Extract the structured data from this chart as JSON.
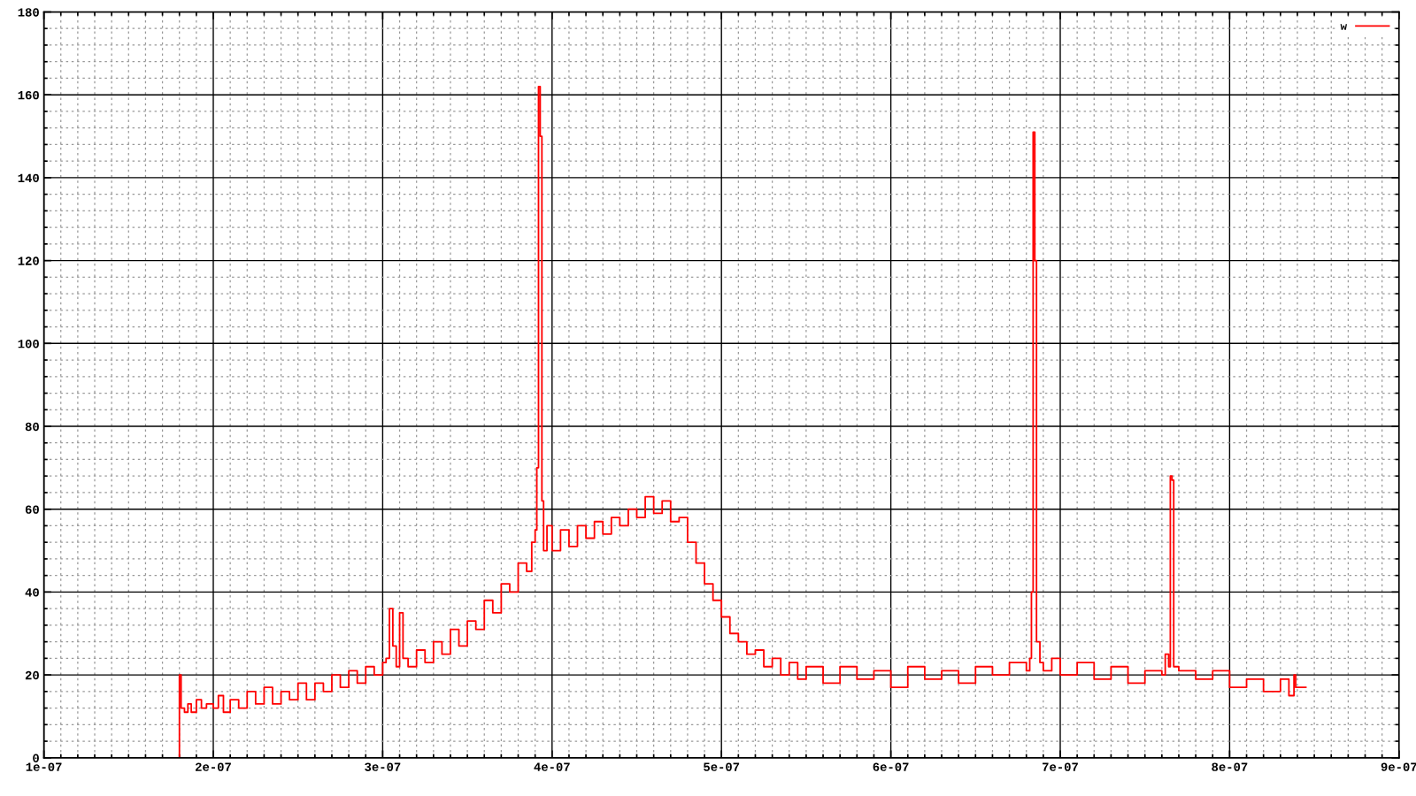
{
  "chart_data": {
    "type": "step",
    "x": [
      1.78e-07,
      1.79e-07,
      1.8e-07,
      1.81e-07,
      1.83e-07,
      1.85e-07,
      1.87e-07,
      1.9e-07,
      1.93e-07,
      1.96e-07,
      2e-07,
      2.03e-07,
      2.06e-07,
      2.1e-07,
      2.15e-07,
      2.2e-07,
      2.25e-07,
      2.3e-07,
      2.35e-07,
      2.4e-07,
      2.45e-07,
      2.5e-07,
      2.55e-07,
      2.6e-07,
      2.65e-07,
      2.7e-07,
      2.75e-07,
      2.8e-07,
      2.85e-07,
      2.9e-07,
      2.95e-07,
      3e-07,
      3.02e-07,
      3.04e-07,
      3.06e-07,
      3.08e-07,
      3.1e-07,
      3.12e-07,
      3.15e-07,
      3.2e-07,
      3.25e-07,
      3.3e-07,
      3.35e-07,
      3.4e-07,
      3.45e-07,
      3.5e-07,
      3.55e-07,
      3.6e-07,
      3.65e-07,
      3.7e-07,
      3.75e-07,
      3.8e-07,
      3.85e-07,
      3.88e-07,
      3.9e-07,
      3.91e-07,
      3.92e-07,
      3.93e-07,
      3.94e-07,
      3.95e-07,
      3.97e-07,
      4e-07,
      4.05e-07,
      4.1e-07,
      4.15e-07,
      4.2e-07,
      4.25e-07,
      4.3e-07,
      4.35e-07,
      4.4e-07,
      4.45e-07,
      4.5e-07,
      4.55e-07,
      4.6e-07,
      4.65e-07,
      4.7e-07,
      4.75e-07,
      4.8e-07,
      4.85e-07,
      4.9e-07,
      4.95e-07,
      5e-07,
      5.05e-07,
      5.1e-07,
      5.15e-07,
      5.2e-07,
      5.25e-07,
      5.3e-07,
      5.35e-07,
      5.4e-07,
      5.45e-07,
      5.5e-07,
      5.6e-07,
      5.7e-07,
      5.8e-07,
      5.9e-07,
      6e-07,
      6.1e-07,
      6.2e-07,
      6.3e-07,
      6.4e-07,
      6.5e-07,
      6.6e-07,
      6.7e-07,
      6.8e-07,
      6.82e-07,
      6.83e-07,
      6.84e-07,
      6.85e-07,
      6.86e-07,
      6.88e-07,
      6.9e-07,
      6.95e-07,
      7e-07,
      7.1e-07,
      7.2e-07,
      7.3e-07,
      7.4e-07,
      7.5e-07,
      7.6e-07,
      7.62e-07,
      7.64e-07,
      7.65e-07,
      7.66e-07,
      7.67e-07,
      7.7e-07,
      7.8e-07,
      7.9e-07,
      8e-07,
      8.1e-07,
      8.2e-07,
      8.3e-07,
      8.35e-07,
      8.38e-07,
      8.39e-07,
      8.45e-07
    ],
    "series": [
      {
        "name": "w",
        "color": "#ff0000",
        "values": [
          0,
          0,
          20,
          12,
          11,
          13,
          11,
          14,
          12,
          13,
          12,
          15,
          11,
          14,
          12,
          16,
          13,
          17,
          13,
          16,
          14,
          18,
          14,
          18,
          16,
          20,
          17,
          21,
          18,
          22,
          20,
          23,
          24,
          36,
          27,
          22,
          35,
          24,
          22,
          26,
          23,
          28,
          25,
          31,
          27,
          33,
          31,
          38,
          35,
          42,
          40,
          47,
          45,
          52,
          55,
          70,
          162,
          150,
          62,
          50,
          56,
          50,
          55,
          51,
          56,
          53,
          57,
          54,
          58,
          56,
          60,
          58,
          63,
          59,
          62,
          57,
          58,
          52,
          47,
          42,
          38,
          34,
          30,
          28,
          25,
          26,
          22,
          24,
          20,
          23,
          19,
          22,
          18,
          22,
          19,
          21,
          17,
          22,
          19,
          21,
          18,
          22,
          20,
          23,
          21,
          24,
          40,
          151,
          120,
          28,
          23,
          21,
          24,
          20,
          23,
          19,
          22,
          18,
          21,
          20,
          25,
          22,
          68,
          67,
          22,
          21,
          19,
          21,
          17,
          19,
          16,
          19,
          15,
          20,
          17,
          17
        ]
      }
    ],
    "xlim": [
      1e-07,
      9e-07
    ],
    "ylim": [
      0,
      180
    ],
    "xticks": [
      1e-07,
      {
        "value": 1.1e-07,
        "label": null
      },
      {
        "value": 1.2e-07,
        "label": null
      },
      {
        "value": 1.3e-07,
        "label": null
      },
      {
        "value": 1.4e-07,
        "label": null
      },
      {
        "value": 1.5e-07,
        "label": null
      },
      {
        "value": 1.6e-07,
        "label": null
      },
      {
        "value": 1.7e-07,
        "label": null
      },
      {
        "value": 1.8e-07,
        "label": null
      },
      {
        "value": 1.9e-07,
        "label": null
      },
      2e-07,
      {
        "value": 2.1e-07,
        "label": null
      },
      {
        "value": 2.2e-07,
        "label": null
      },
      {
        "value": 2.3e-07,
        "label": null
      },
      {
        "value": 2.4e-07,
        "label": null
      },
      {
        "value": 2.5e-07,
        "label": null
      },
      {
        "value": 2.6e-07,
        "label": null
      },
      {
        "value": 2.7e-07,
        "label": null
      },
      {
        "value": 2.8e-07,
        "label": null
      },
      {
        "value": 2.9e-07,
        "label": null
      },
      3e-07,
      {
        "value": 3.1e-07,
        "label": null
      },
      {
        "value": 3.2e-07,
        "label": null
      },
      {
        "value": 3.3e-07,
        "label": null
      },
      {
        "value": 3.4e-07,
        "label": null
      },
      {
        "value": 3.5e-07,
        "label": null
      },
      {
        "value": 3.6e-07,
        "label": null
      },
      {
        "value": 3.7e-07,
        "label": null
      },
      {
        "value": 3.8e-07,
        "label": null
      },
      {
        "value": 3.9e-07,
        "label": null
      },
      4e-07,
      {
        "value": 4.1e-07,
        "label": null
      },
      {
        "value": 4.2e-07,
        "label": null
      },
      {
        "value": 4.3e-07,
        "label": null
      },
      {
        "value": 4.4e-07,
        "label": null
      },
      {
        "value": 4.5e-07,
        "label": null
      },
      {
        "value": 4.6e-07,
        "label": null
      },
      {
        "value": 4.7e-07,
        "label": null
      },
      {
        "value": 4.8e-07,
        "label": null
      },
      {
        "value": 4.9e-07,
        "label": null
      },
      5e-07,
      {
        "value": 5.1e-07,
        "label": null
      },
      {
        "value": 5.2e-07,
        "label": null
      },
      {
        "value": 5.3e-07,
        "label": null
      },
      {
        "value": 5.4e-07,
        "label": null
      },
      {
        "value": 5.5e-07,
        "label": null
      },
      {
        "value": 5.6e-07,
        "label": null
      },
      {
        "value": 5.7e-07,
        "label": null
      },
      {
        "value": 5.8e-07,
        "label": null
      },
      {
        "value": 5.9e-07,
        "label": null
      },
      6e-07,
      {
        "value": 6.1e-07,
        "label": null
      },
      {
        "value": 6.2e-07,
        "label": null
      },
      {
        "value": 6.3e-07,
        "label": null
      },
      {
        "value": 6.4e-07,
        "label": null
      },
      {
        "value": 6.5e-07,
        "label": null
      },
      {
        "value": 6.6e-07,
        "label": null
      },
      {
        "value": 6.7e-07,
        "label": null
      },
      {
        "value": 6.8e-07,
        "label": null
      },
      {
        "value": 6.9e-07,
        "label": null
      },
      7e-07,
      {
        "value": 7.1e-07,
        "label": null
      },
      {
        "value": 7.2e-07,
        "label": null
      },
      {
        "value": 7.3e-07,
        "label": null
      },
      {
        "value": 7.4e-07,
        "label": null
      },
      {
        "value": 7.5e-07,
        "label": null
      },
      {
        "value": 7.6e-07,
        "label": null
      },
      {
        "value": 7.7e-07,
        "label": null
      },
      {
        "value": 7.8e-07,
        "label": null
      },
      {
        "value": 7.9e-07,
        "label": null
      },
      8e-07,
      {
        "value": 8.1e-07,
        "label": null
      },
      {
        "value": 8.2e-07,
        "label": null
      },
      {
        "value": 8.3e-07,
        "label": null
      },
      {
        "value": 8.4e-07,
        "label": null
      },
      {
        "value": 8.5e-07,
        "label": null
      },
      {
        "value": 8.6e-07,
        "label": null
      },
      {
        "value": 8.7e-07,
        "label": null
      },
      {
        "value": 8.8e-07,
        "label": null
      },
      {
        "value": 8.9e-07,
        "label": null
      },
      9e-07
    ],
    "yticks": [
      0,
      {
        "value": 4,
        "label": null
      },
      {
        "value": 8,
        "label": null
      },
      {
        "value": 12,
        "label": null
      },
      {
        "value": 16,
        "label": null
      },
      20,
      {
        "value": 24,
        "label": null
      },
      {
        "value": 28,
        "label": null
      },
      {
        "value": 32,
        "label": null
      },
      {
        "value": 36,
        "label": null
      },
      40,
      {
        "value": 44,
        "label": null
      },
      {
        "value": 48,
        "label": null
      },
      {
        "value": 52,
        "label": null
      },
      {
        "value": 56,
        "label": null
      },
      60,
      {
        "value": 64,
        "label": null
      },
      {
        "value": 68,
        "label": null
      },
      {
        "value": 72,
        "label": null
      },
      {
        "value": 76,
        "label": null
      },
      80,
      {
        "value": 84,
        "label": null
      },
      {
        "value": 88,
        "label": null
      },
      {
        "value": 92,
        "label": null
      },
      {
        "value": 96,
        "label": null
      },
      100,
      {
        "value": 104,
        "label": null
      },
      {
        "value": 108,
        "label": null
      },
      {
        "value": 112,
        "label": null
      },
      {
        "value": 116,
        "label": null
      },
      120,
      {
        "value": 124,
        "label": null
      },
      {
        "value": 128,
        "label": null
      },
      {
        "value": 132,
        "label": null
      },
      {
        "value": 136,
        "label": null
      },
      140,
      {
        "value": 144,
        "label": null
      },
      {
        "value": 148,
        "label": null
      },
      {
        "value": 152,
        "label": null
      },
      {
        "value": 156,
        "label": null
      },
      160,
      {
        "value": 164,
        "label": null
      },
      {
        "value": 168,
        "label": null
      },
      {
        "value": 172,
        "label": null
      },
      {
        "value": 176,
        "label": null
      },
      180
    ],
    "grid": true,
    "legend": "top right",
    "line_style": "solid"
  }
}
